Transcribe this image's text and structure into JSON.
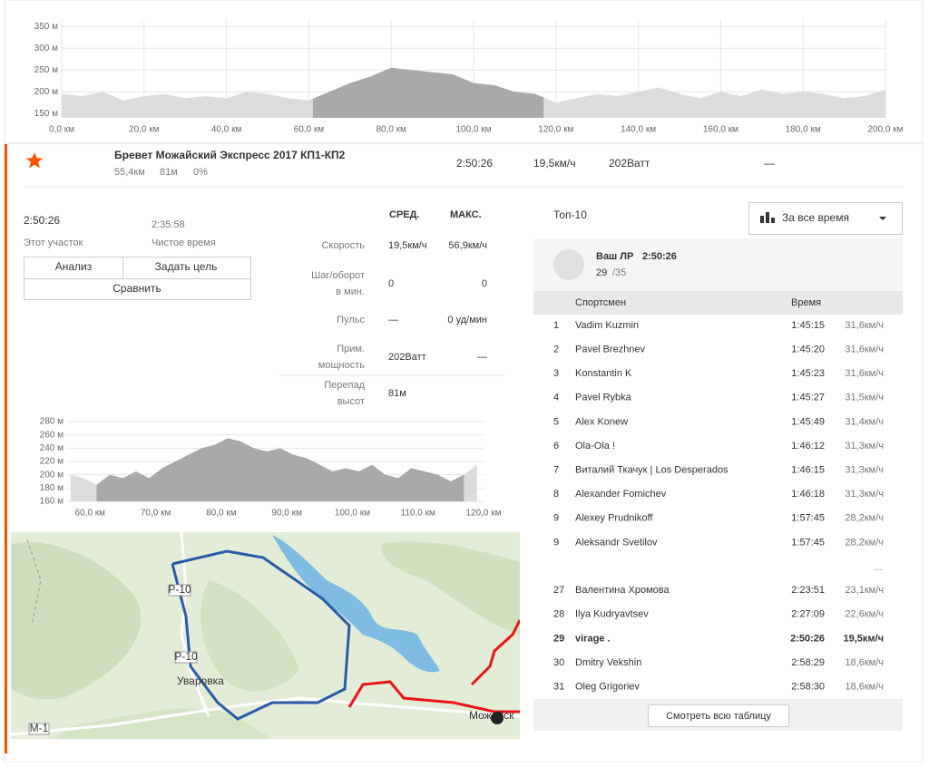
{
  "elevation_profile": {
    "xlim": [
      0,
      200
    ],
    "ylim": [
      140,
      365
    ],
    "xticks": [
      {
        "value": 0,
        "label": "0,0 км"
      },
      {
        "value": 20,
        "label": "20,0 км"
      },
      {
        "value": 40,
        "label": "40,0 км"
      },
      {
        "value": 60,
        "label": "60,0 км"
      },
      {
        "value": 80,
        "label": "80,0 км"
      },
      {
        "value": 100,
        "label": "100,0 км"
      },
      {
        "value": 120,
        "label": "120,0 км"
      },
      {
        "value": 140,
        "label": "140,0 км"
      },
      {
        "value": 160,
        "label": "160,0 км"
      },
      {
        "value": 180,
        "label": "180,0 км"
      },
      {
        "value": 200,
        "label": "200,0 км"
      }
    ],
    "yticks": [
      {
        "value": 150,
        "label": "150 м"
      },
      {
        "value": 200,
        "label": "200 м"
      },
      {
        "value": 250,
        "label": "250 м"
      },
      {
        "value": 300,
        "label": "300 м"
      },
      {
        "value": 350,
        "label": "350 м"
      }
    ],
    "grid_x": true,
    "segment_range": [
      61,
      117
    ],
    "distance": [
      0,
      5,
      10,
      15,
      20,
      25,
      30,
      35,
      40,
      45,
      50,
      55,
      60,
      65,
      70,
      75,
      80,
      85,
      90,
      95,
      100,
      105,
      110,
      115,
      120,
      125,
      130,
      135,
      140,
      145,
      150,
      155,
      160,
      165,
      170,
      175,
      180,
      185,
      190,
      195,
      200
    ],
    "elevation": [
      195,
      190,
      200,
      180,
      190,
      195,
      185,
      190,
      185,
      200,
      195,
      185,
      180,
      200,
      220,
      235,
      255,
      250,
      245,
      240,
      220,
      215,
      200,
      195,
      175,
      185,
      195,
      190,
      200,
      210,
      195,
      185,
      200,
      190,
      205,
      195,
      200,
      195,
      185,
      190,
      205
    ]
  },
  "segment_header": {
    "name": "Бревет Можайский Экспресс 2017 КП1-КП2",
    "distance": "55,4км",
    "elevation_gain": "81м",
    "grade": "0%",
    "time": "2:50:26",
    "speed": "19,5км/ч",
    "power": "202Ватт",
    "heart_rate": "—"
  },
  "effort": {
    "elapsed_time": "2:50:26",
    "elapsed_label": "Этот участок",
    "moving_time": "2:35:58",
    "moving_label": "Чистое время",
    "buttons": [
      "Анализ",
      "Задать цель",
      "Сравнить"
    ]
  },
  "stats": {
    "headers": [
      "СРЕД.",
      "МАКС."
    ],
    "rows": [
      {
        "label": [
          "Скорость"
        ],
        "avg": "19,5км/ч",
        "max": "56,9км/ч"
      },
      {
        "label": [
          "Шаг/оборот",
          "в мин."
        ],
        "avg": "0",
        "max": "0"
      },
      {
        "label": [
          "Пульс"
        ],
        "avg": "—",
        "max": "0 уд/мин"
      },
      {
        "label": [
          "Прим.",
          "мощность"
        ],
        "avg": "202Ватт",
        "max": "—"
      },
      {
        "label": [
          "Перепад",
          "высот"
        ],
        "avg": "81м",
        "max": ""
      }
    ]
  },
  "segment_profile": {
    "xlim": [
      56.5,
      120
    ],
    "ylim": [
      160,
      280
    ],
    "xticks": [
      {
        "value": 60,
        "label": "60,0 км"
      },
      {
        "value": 70,
        "label": "70,0 км"
      },
      {
        "value": 80,
        "label": "80,0 км"
      },
      {
        "value": 90,
        "label": "90,0 км"
      },
      {
        "value": 100,
        "label": "100,0 км"
      },
      {
        "value": 110,
        "label": "110,0 км"
      },
      {
        "value": 120,
        "label": "120,0 км"
      }
    ],
    "yticks": [
      {
        "value": 160,
        "label": "160 м"
      },
      {
        "value": 180,
        "label": "180 м"
      },
      {
        "value": 200,
        "label": "200 м"
      },
      {
        "value": 220,
        "label": "220 м"
      },
      {
        "value": 240,
        "label": "240 м"
      },
      {
        "value": 260,
        "label": "260 м"
      },
      {
        "value": 280,
        "label": "280 м"
      }
    ],
    "grid_x": false,
    "segment_range": [
      61,
      117
    ],
    "distance": [
      57,
      59,
      61,
      63,
      65,
      67,
      69,
      71,
      73,
      75,
      77,
      79,
      81,
      83,
      85,
      87,
      89,
      91,
      93,
      95,
      97,
      99,
      101,
      103,
      105,
      107,
      109,
      111,
      113,
      115,
      117,
      119
    ],
    "elevation": [
      200,
      195,
      185,
      200,
      195,
      205,
      195,
      210,
      220,
      230,
      240,
      245,
      255,
      250,
      240,
      235,
      240,
      230,
      225,
      215,
      205,
      210,
      205,
      215,
      200,
      195,
      210,
      205,
      200,
      190,
      200,
      215
    ]
  },
  "map": {
    "labels": [
      "Р-10",
      "Р-10",
      "Уваровка",
      "М-1",
      "Можайск"
    ]
  },
  "leaderboard": {
    "title": "Топ-10",
    "filter": "За все время",
    "pr_label": "Ваш ЛР",
    "pr_time": "2:50:26",
    "pr_rank": "29",
    "pr_total": "/35",
    "columns": [
      "Спортсмен",
      "Время"
    ],
    "top": [
      {
        "rank": 1,
        "name": "Vadim Kuzmin",
        "time": "1:45:15",
        "speed": "31,6км/ч"
      },
      {
        "rank": 2,
        "name": "Pavel Brezhnev",
        "time": "1:45:20",
        "speed": "31,6км/ч"
      },
      {
        "rank": 3,
        "name": "Konstantin K",
        "time": "1:45:23",
        "speed": "31,6км/ч"
      },
      {
        "rank": 4,
        "name": "Pavel Rybka",
        "time": "1:45:27",
        "speed": "31,5км/ч"
      },
      {
        "rank": 5,
        "name": "Alex Konew",
        "time": "1:45:49",
        "speed": "31,4км/ч"
      },
      {
        "rank": 6,
        "name": "Ola-Ola !",
        "time": "1:46:12",
        "speed": "31,3км/ч"
      },
      {
        "rank": 7,
        "name": "Виталий Ткачук | Los Desperados",
        "time": "1:46:15",
        "speed": "31,3км/ч"
      },
      {
        "rank": 8,
        "name": "Alexander Fomichev",
        "time": "1:46:18",
        "speed": "31,3км/ч"
      },
      {
        "rank": 9,
        "name": "Alexey Prudnikoff",
        "time": "1:57:45",
        "speed": "28,2км/ч"
      },
      {
        "rank": 9,
        "name": "Aleksandr Svetilov",
        "time": "1:57:45",
        "speed": "28,2км/ч"
      }
    ],
    "ellipsis": "...",
    "nearby": [
      {
        "rank": 27,
        "name": "Валентина Хромова",
        "time": "2:23:51",
        "speed": "23,1км/ч"
      },
      {
        "rank": 28,
        "name": "Ilya Kudryavtsev",
        "time": "2:27:09",
        "speed": "22,6км/ч"
      },
      {
        "rank": 29,
        "name": "virage .",
        "time": "2:50:26",
        "speed": "19,5км/ч",
        "bold": true
      },
      {
        "rank": 30,
        "name": "Dmitry Vekshin",
        "time": "2:58:29",
        "speed": "18,6км/ч"
      },
      {
        "rank": 31,
        "name": "Oleg Grigoriev",
        "time": "2:58:30",
        "speed": "18,6км/ч"
      }
    ],
    "view_all": "Смотреть всю таблицу"
  }
}
